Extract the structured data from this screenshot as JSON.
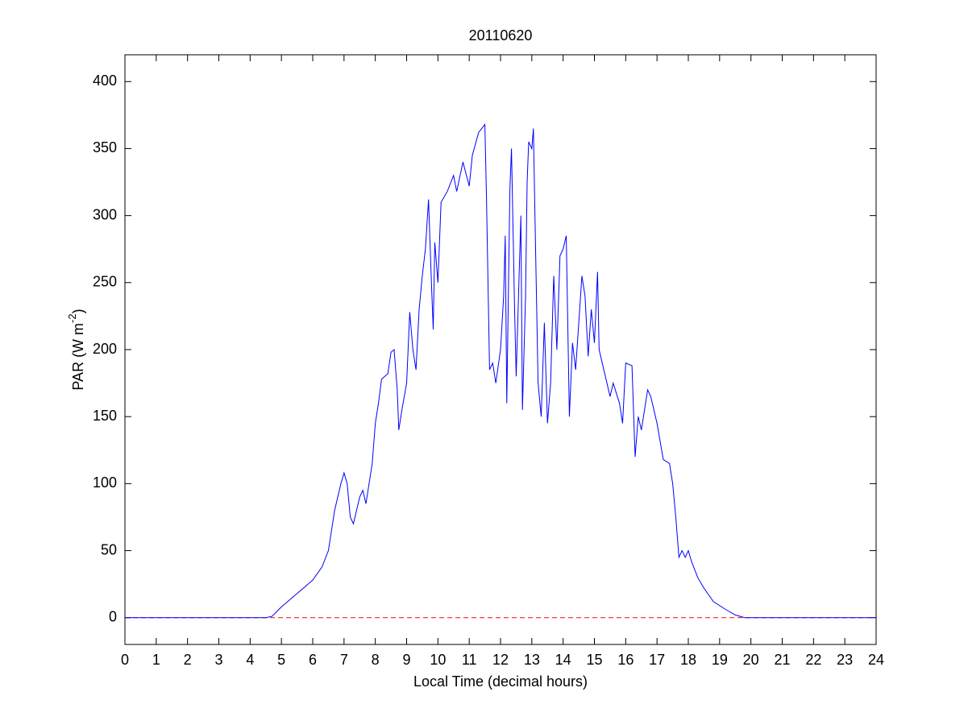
{
  "chart_data": {
    "type": "line",
    "title": "20110620",
    "xlabel": "Local Time (decimal hours)",
    "ylabel": {
      "text": "PAR (W m",
      "sup": "-2",
      "end": ")"
    },
    "xlim": [
      0,
      24
    ],
    "xticks": [
      0,
      1,
      2,
      3,
      4,
      5,
      6,
      7,
      8,
      9,
      10,
      11,
      12,
      13,
      14,
      15,
      16,
      17,
      18,
      19,
      20,
      21,
      22,
      23,
      24
    ],
    "ylim": [
      -20,
      420
    ],
    "yticks": [
      0,
      50,
      100,
      150,
      200,
      250,
      300,
      350,
      400
    ],
    "series": [
      {
        "color": "#0000ff",
        "dash": false,
        "x": [
          0,
          4.5,
          4.7,
          5,
          5.5,
          6,
          6.3,
          6.5,
          6.7,
          6.9,
          7.0,
          7.1,
          7.2,
          7.3,
          7.5,
          7.6,
          7.7,
          7.8,
          7.9,
          8.0,
          8.1,
          8.2,
          8.4,
          8.5,
          8.6,
          8.7,
          8.75,
          8.85,
          9.0,
          9.1,
          9.2,
          9.3,
          9.4,
          9.5,
          9.6,
          9.7,
          9.8,
          9.85,
          9.9,
          10.0,
          10.1,
          10.3,
          10.5,
          10.6,
          10.8,
          11.0,
          11.1,
          11.3,
          11.5,
          11.55,
          11.65,
          11.75,
          11.85,
          12.0,
          12.1,
          12.15,
          12.2,
          12.3,
          12.35,
          12.45,
          12.5,
          12.6,
          12.65,
          12.7,
          12.8,
          12.85,
          12.9,
          13.0,
          13.05,
          13.1,
          13.2,
          13.3,
          13.4,
          13.5,
          13.6,
          13.7,
          13.8,
          13.9,
          14.0,
          14.1,
          14.2,
          14.3,
          14.4,
          14.6,
          14.7,
          14.8,
          14.9,
          15.0,
          15.1,
          15.15,
          15.3,
          15.5,
          15.6,
          15.8,
          15.9,
          16.0,
          16.2,
          16.3,
          16.4,
          16.5,
          16.7,
          16.8,
          17.0,
          17.2,
          17.4,
          17.5,
          17.6,
          17.7,
          17.8,
          17.9,
          18.0,
          18.1,
          18.3,
          18.5,
          18.8,
          19.2,
          19.5,
          19.8,
          24
        ],
        "values": [
          0,
          0,
          1,
          8,
          18,
          28,
          38,
          50,
          80,
          100,
          108,
          100,
          75,
          70,
          90,
          95,
          85,
          100,
          115,
          145,
          160,
          178,
          182,
          198,
          200,
          170,
          140,
          155,
          175,
          228,
          200,
          185,
          230,
          255,
          275,
          312,
          245,
          215,
          280,
          250,
          310,
          318,
          330,
          318,
          340,
          322,
          345,
          362,
          368,
          315,
          185,
          190,
          175,
          200,
          240,
          285,
          160,
          320,
          350,
          230,
          180,
          260,
          300,
          155,
          240,
          325,
          355,
          350,
          365,
          300,
          175,
          150,
          220,
          145,
          175,
          255,
          200,
          270,
          275,
          285,
          150,
          205,
          185,
          255,
          240,
          195,
          230,
          205,
          258,
          200,
          185,
          165,
          175,
          160,
          145,
          190,
          188,
          120,
          150,
          140,
          170,
          165,
          145,
          118,
          115,
          100,
          75,
          45,
          50,
          45,
          50,
          42,
          30,
          22,
          12,
          6,
          2,
          0,
          0
        ]
      },
      {
        "color": "#ff0000",
        "dash": true,
        "x": [
          0,
          24
        ],
        "values": [
          0,
          0
        ]
      }
    ]
  }
}
